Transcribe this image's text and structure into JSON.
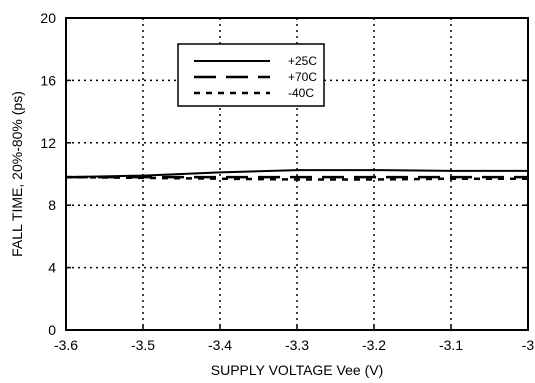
{
  "chart_data": {
    "type": "line",
    "title": "",
    "xlabel": "SUPPLY VOLTAGE Vee (V)",
    "ylabel": "FALL TIME, 20%-80% (ps)",
    "xlim": [
      -3.6,
      -3.0
    ],
    "ylim": [
      0,
      20
    ],
    "x_ticks": [
      -3.6,
      -3.5,
      -3.4,
      -3.3,
      -3.2,
      -3.1,
      -3.0
    ],
    "x_tick_labels": [
      "-3.6",
      "-3.5",
      "-3.4",
      "-3.3",
      "-3.2",
      "-3.1",
      "-3"
    ],
    "y_ticks": [
      0,
      4,
      8,
      12,
      16,
      20
    ],
    "y_tick_labels": [
      "0",
      "4",
      "8",
      "12",
      "16",
      "20"
    ],
    "grid": true,
    "legend_position": "top-center",
    "x": [
      -3.6,
      -3.5,
      -3.4,
      -3.3,
      -3.2,
      -3.1,
      -3.0
    ],
    "series": [
      {
        "name": "+25C",
        "style": "solid",
        "values": [
          9.8,
          9.9,
          10.1,
          10.25,
          10.25,
          10.2,
          10.2
        ]
      },
      {
        "name": "+70C",
        "style": "dashed",
        "values": [
          9.8,
          9.8,
          9.8,
          9.8,
          9.8,
          9.8,
          9.8
        ]
      },
      {
        "name": "-40C",
        "style": "dotted",
        "values": [
          9.8,
          9.75,
          9.7,
          9.65,
          9.65,
          9.7,
          9.7
        ]
      }
    ],
    "colors": {
      "line": "#000000",
      "grid": "#000000",
      "background": "#ffffff"
    }
  }
}
